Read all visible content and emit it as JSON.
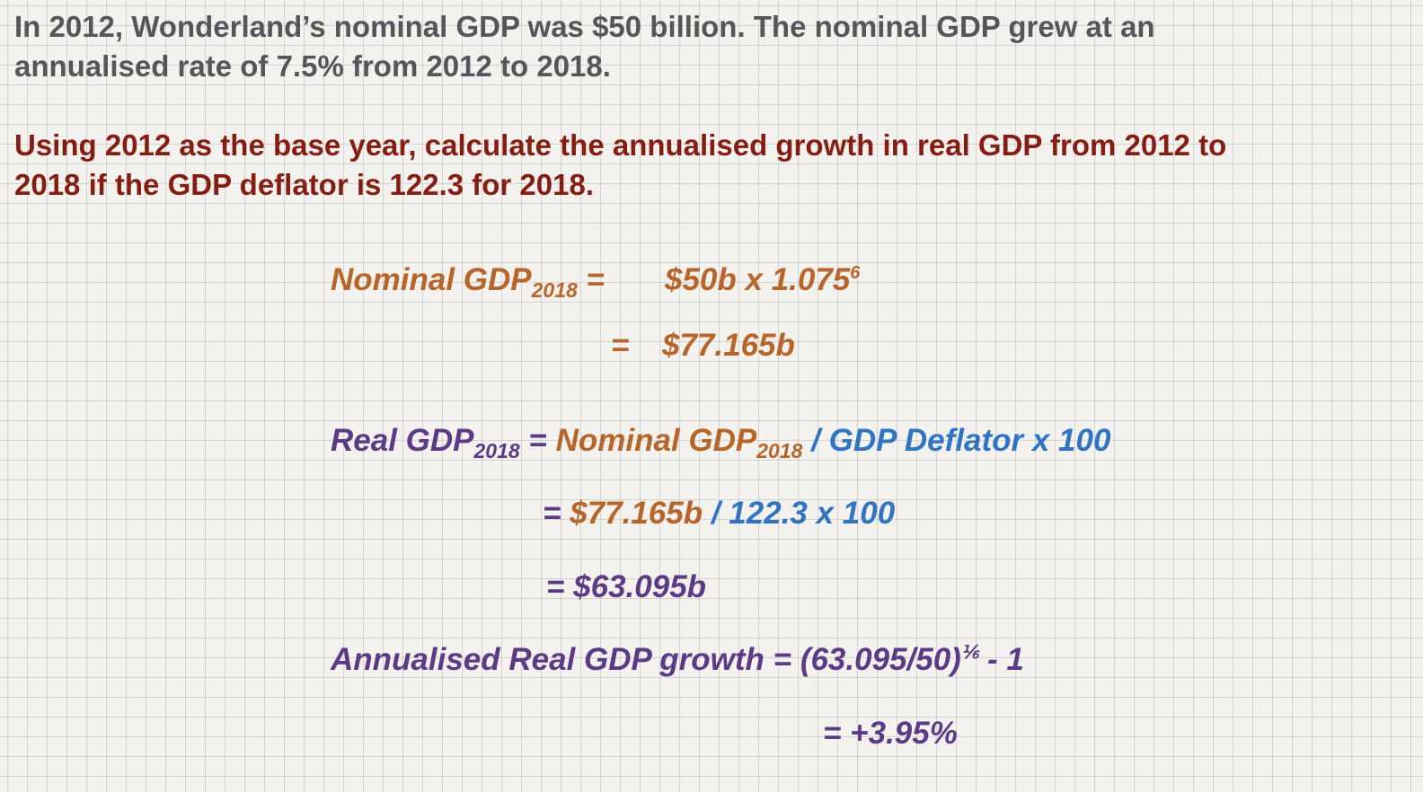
{
  "question": {
    "line1": "In 2012, Wonderland’s nominal GDP was $50 billion.  The nominal GDP grew at an",
    "line2": "annualised rate of 7.5% from 2012 to 2018.",
    "task_line1": "Using 2012 as the base year, calculate the annualised growth in real GDP from 2012 to",
    "task_line2": "2018 if the GDP deflator is 122.3 for 2018."
  },
  "solution": {
    "nominal": {
      "label": "Nominal GDP",
      "sub": "2018",
      "eq": " =",
      "expr": "$50b x 1.075",
      "exp": "6",
      "eq2": "=",
      "result": "$77.165b"
    },
    "real": {
      "label": "Real GDP",
      "sub": "2018",
      "eq": "=",
      "nominal_label": "Nominal GDP",
      "nominal_sub": "2018",
      "div": "/",
      "deflator": "GDP Deflator x 100",
      "line2_eq": "=",
      "line2_value": "$77.165b",
      "line2_div": "/",
      "line2_rest": "122.3 x 100",
      "line3": "= $63.095b"
    },
    "growth": {
      "label": "Annualised Real GDP growth = (63.095/50)",
      "exp": "⅙",
      "tail": " - 1",
      "result": "= +3.95%"
    }
  },
  "colors": {
    "question": "#56565a",
    "task": "#861d12",
    "nominal": "#b8652a",
    "real": "#5c3a85",
    "deflator": "#2f75c4"
  }
}
